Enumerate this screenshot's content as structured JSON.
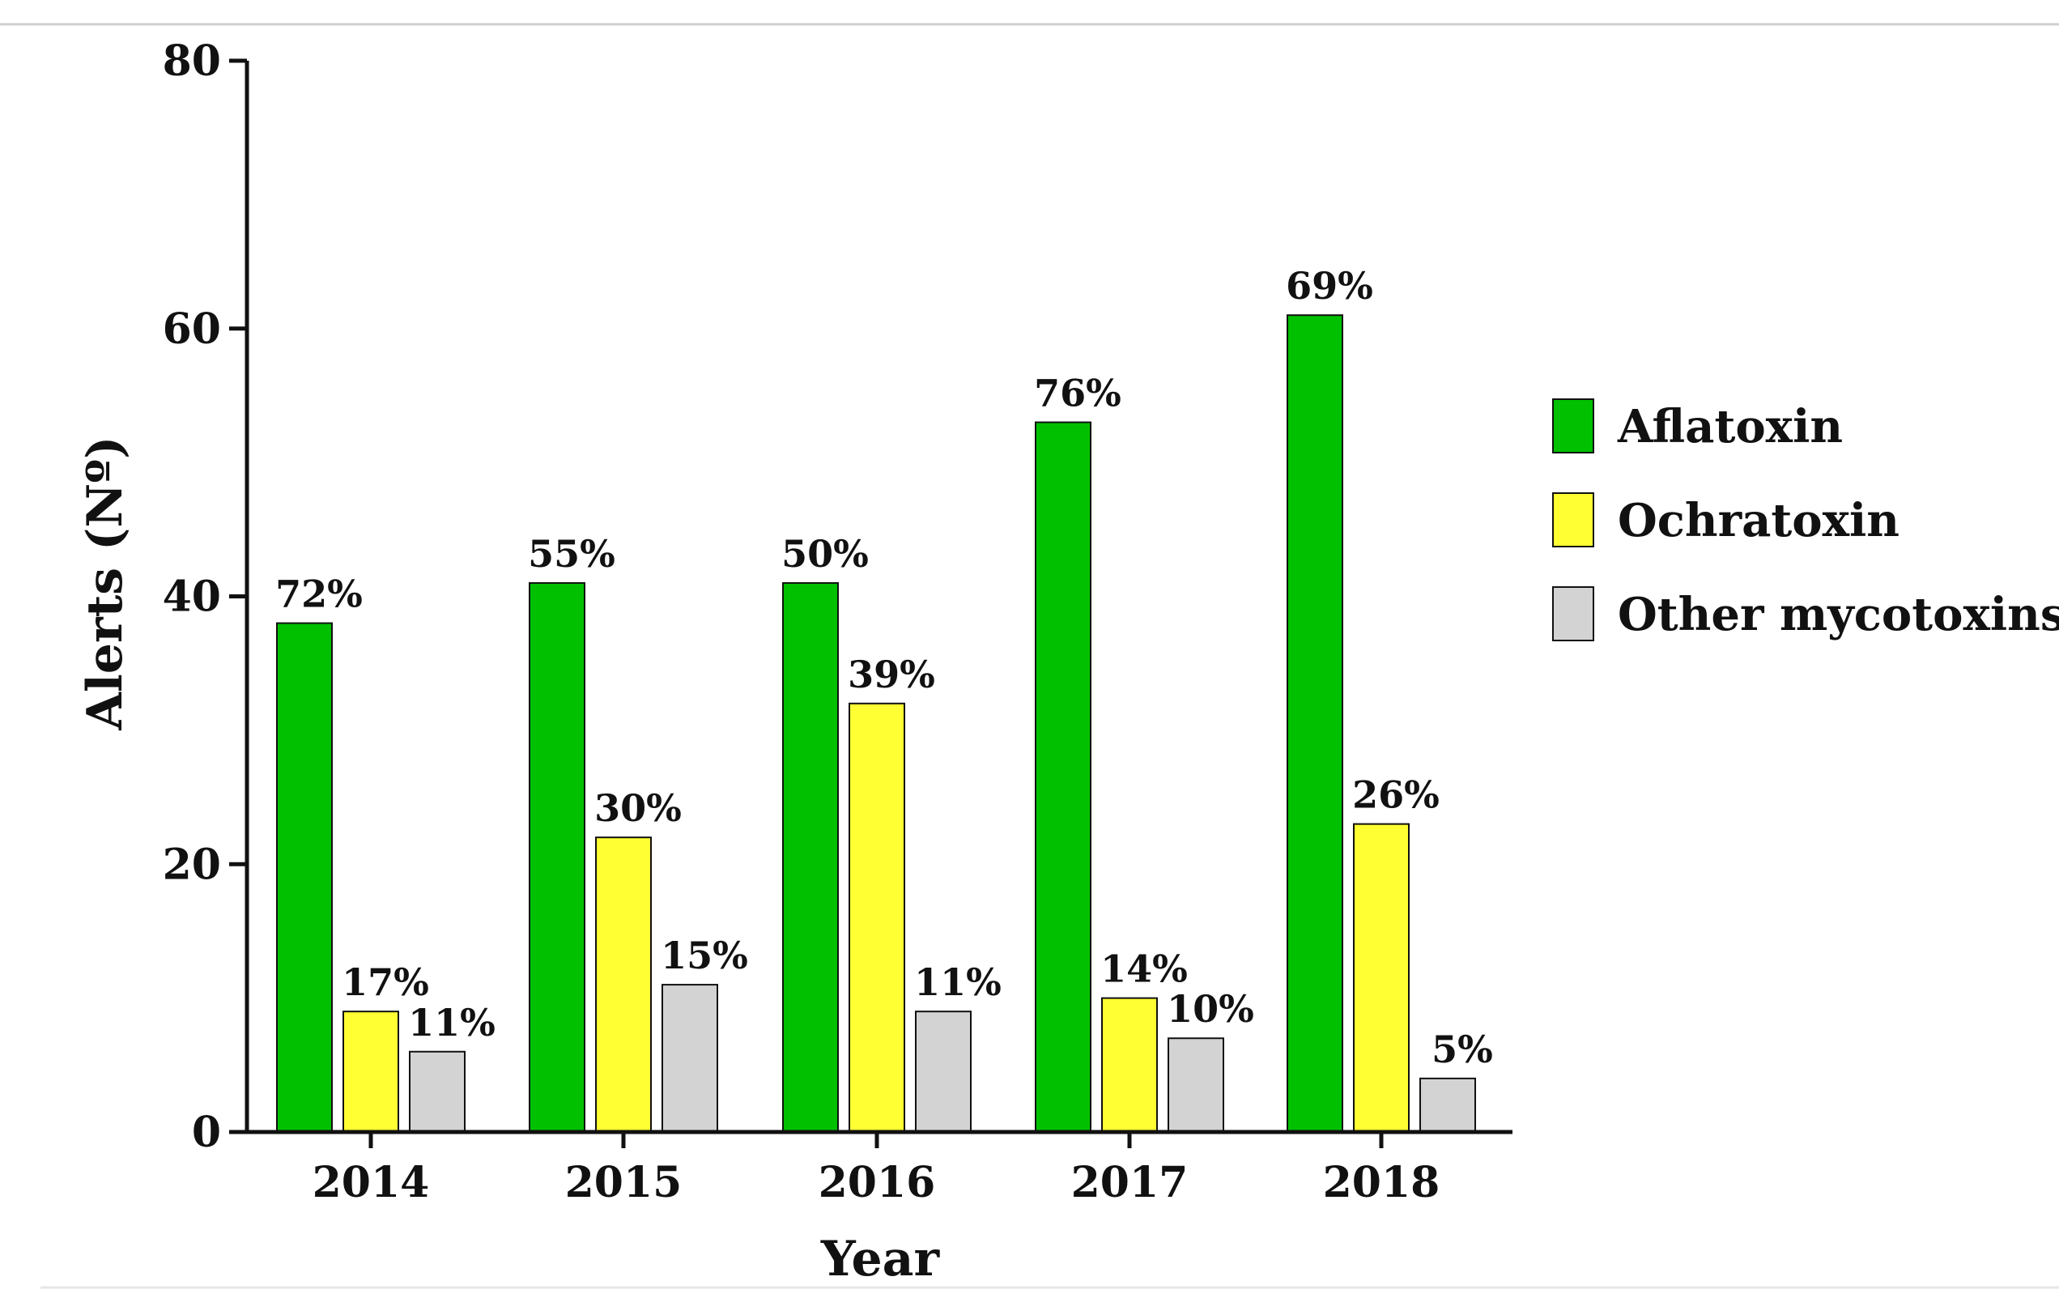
{
  "chart_data": {
    "type": "bar",
    "title": "",
    "xlabel": "Year",
    "ylabel": "Alerts (Nº)",
    "ylim": [
      0,
      80
    ],
    "yticks": [
      0,
      20,
      40,
      60,
      80
    ],
    "categories": [
      "2014",
      "2015",
      "2016",
      "2017",
      "2018"
    ],
    "grid": false,
    "legend_position": "right",
    "series": [
      {
        "name": "Aflatoxin",
        "color": "#00C000",
        "values": [
          38,
          41,
          41,
          53,
          61
        ],
        "labels": [
          "72%",
          "55%",
          "50%",
          "76%",
          "69%"
        ]
      },
      {
        "name": "Ochratoxin",
        "color": "#FFFF33",
        "values": [
          9,
          22,
          32,
          10,
          23
        ],
        "labels": [
          "17%",
          "30%",
          "39%",
          "14%",
          "26%"
        ]
      },
      {
        "name": "Other mycotoxins",
        "color": "#D3D3D3",
        "values": [
          6,
          11,
          9,
          7,
          4
        ],
        "labels": [
          "11%",
          "15%",
          "11%",
          "10%",
          "5%"
        ]
      }
    ]
  },
  "colors": {
    "axis": "#111111",
    "bar_stroke": "#111111",
    "frame_line": "#cfcfcf"
  }
}
